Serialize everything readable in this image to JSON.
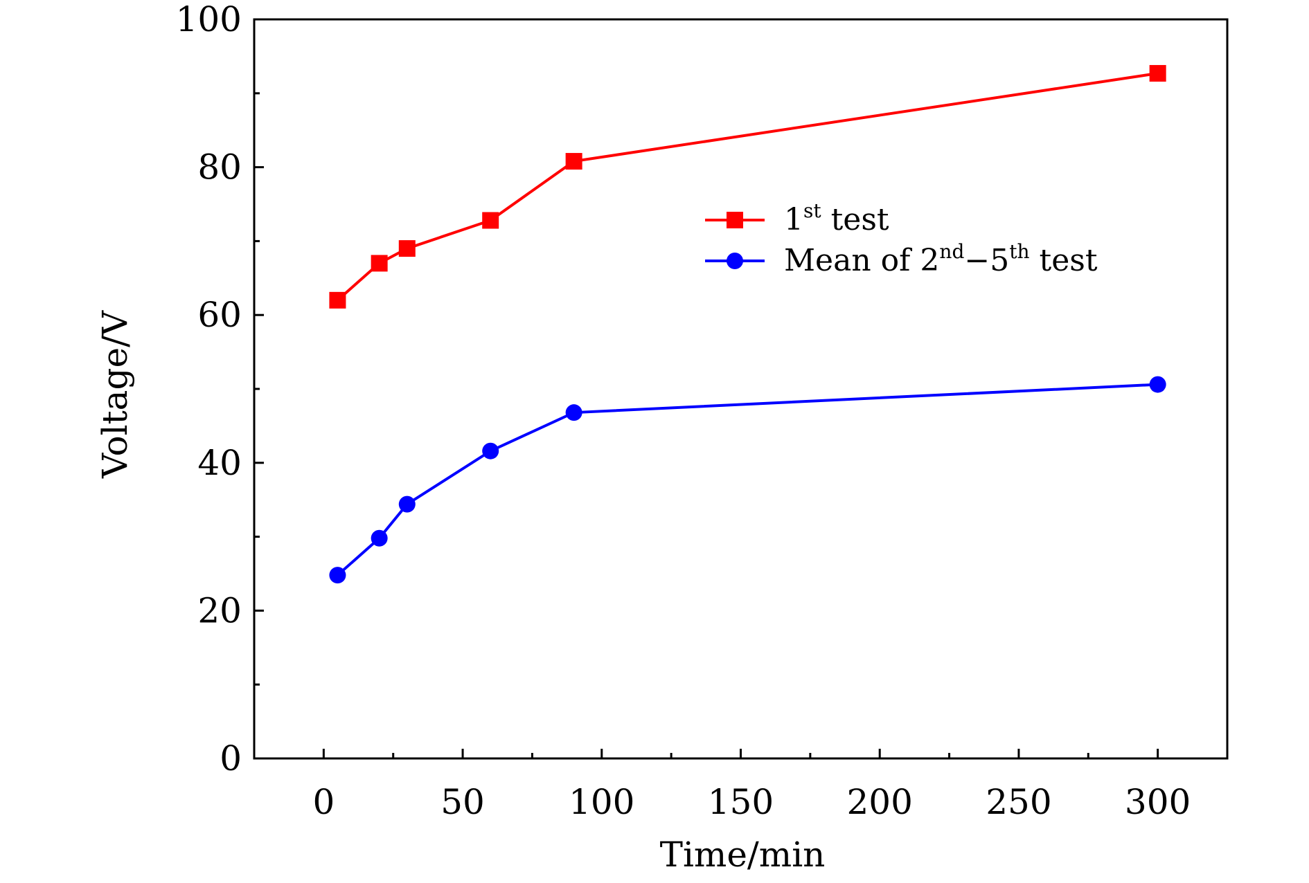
{
  "chart_data": {
    "type": "line",
    "title": "",
    "xlabel": "Time/min",
    "ylabel": "Voltage/V",
    "xlim": [
      -25,
      325
    ],
    "ylim": [
      0,
      100
    ],
    "xticks": [
      0,
      50,
      100,
      150,
      200,
      250,
      300
    ],
    "yticks": [
      0,
      20,
      40,
      60,
      80,
      100
    ],
    "x_minor_step": 25,
    "y_minor_step": 10,
    "legend_position": "upper-right-inside",
    "series": [
      {
        "name": "1st test",
        "legend": {
          "base": "1",
          "sup": "st",
          "rest": " test"
        },
        "color": "#ff0000",
        "marker": "square",
        "x": [
          5,
          20,
          30,
          60,
          90,
          300
        ],
        "y": [
          62,
          67,
          69,
          72.8,
          80.8,
          92.7
        ]
      },
      {
        "name": "Mean of 2nd-5th test",
        "legend": {
          "base": "Mean of 2",
          "sup": "nd",
          "mid": "−5",
          "sup2": "th",
          "rest": " test"
        },
        "color": "#0000ff",
        "marker": "circle",
        "x": [
          5,
          20,
          30,
          60,
          90,
          300
        ],
        "y": [
          24.8,
          29.8,
          34.4,
          41.6,
          46.8,
          50.6
        ]
      }
    ]
  }
}
